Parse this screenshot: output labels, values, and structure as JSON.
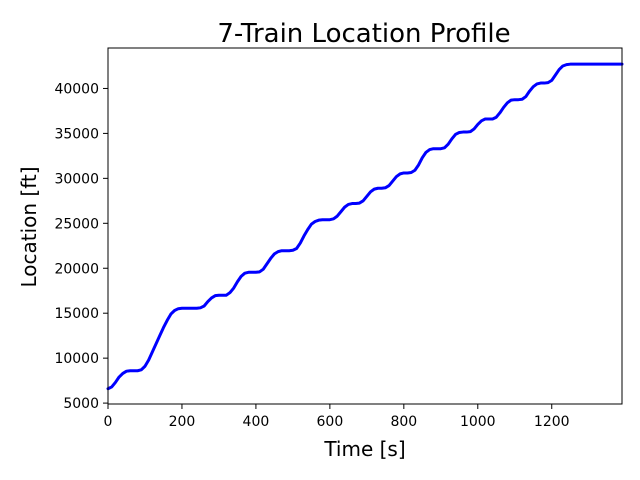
{
  "chart_data": {
    "type": "line",
    "title": "7-Train Location Profile",
    "xlabel": "Time [s]",
    "ylabel": "Location [ft]",
    "xlim": [
      0,
      1390
    ],
    "ylim": [
      4900,
      44500
    ],
    "xticks": [
      0,
      200,
      400,
      600,
      800,
      1000,
      1200
    ],
    "yticks": [
      5000,
      10000,
      15000,
      20000,
      25000,
      30000,
      35000,
      40000
    ],
    "grid": false,
    "line_color": "#0000ff",
    "series": [
      {
        "name": "",
        "x": [
          0,
          10,
          20,
          30,
          40,
          50,
          60,
          70,
          80,
          90,
          100,
          110,
          120,
          130,
          140,
          150,
          160,
          170,
          180,
          190,
          200,
          210,
          220,
          230,
          240,
          250,
          260,
          270,
          280,
          290,
          300,
          310,
          320,
          330,
          340,
          350,
          360,
          370,
          380,
          390,
          400,
          410,
          420,
          430,
          440,
          450,
          460,
          470,
          480,
          490,
          500,
          510,
          520,
          530,
          540,
          550,
          560,
          570,
          580,
          590,
          600,
          610,
          620,
          630,
          640,
          650,
          660,
          670,
          680,
          690,
          700,
          710,
          720,
          730,
          740,
          750,
          760,
          770,
          780,
          790,
          800,
          810,
          820,
          830,
          840,
          850,
          860,
          870,
          880,
          890,
          900,
          910,
          920,
          930,
          940,
          950,
          960,
          970,
          980,
          990,
          1000,
          1010,
          1020,
          1030,
          1040,
          1050,
          1060,
          1070,
          1080,
          1090,
          1100,
          1110,
          1120,
          1130,
          1140,
          1150,
          1160,
          1170,
          1180,
          1190,
          1200,
          1210,
          1220,
          1230,
          1240,
          1250,
          1260,
          1270,
          1280,
          1290,
          1300,
          1310,
          1320,
          1330,
          1340,
          1350,
          1360,
          1370,
          1380,
          1390
        ],
        "y": [
          6600,
          6800,
          7300,
          7900,
          8300,
          8550,
          8600,
          8600,
          8600,
          8700,
          9100,
          9800,
          10700,
          11600,
          12500,
          13400,
          14200,
          14900,
          15300,
          15500,
          15550,
          15550,
          15550,
          15550,
          15550,
          15600,
          15800,
          16300,
          16700,
          16950,
          17000,
          17000,
          17000,
          17300,
          17800,
          18500,
          19100,
          19450,
          19550,
          19550,
          19550,
          19600,
          19900,
          20500,
          21100,
          21600,
          21850,
          21950,
          21950,
          21950,
          22000,
          22200,
          22800,
          23600,
          24300,
          24900,
          25200,
          25350,
          25400,
          25400,
          25400,
          25500,
          25800,
          26300,
          26800,
          27100,
          27200,
          27200,
          27250,
          27500,
          28000,
          28500,
          28800,
          28900,
          28900,
          28950,
          29200,
          29700,
          30200,
          30500,
          30600,
          30600,
          30650,
          30900,
          31500,
          32300,
          32900,
          33200,
          33300,
          33300,
          33300,
          33400,
          33800,
          34400,
          34900,
          35100,
          35150,
          35150,
          35200,
          35500,
          36000,
          36400,
          36600,
          36600,
          36600,
          36800,
          37300,
          37900,
          38400,
          38700,
          38750,
          38750,
          38800,
          39100,
          39700,
          40200,
          40500,
          40600,
          40600,
          40650,
          40900,
          41500,
          42100,
          42500,
          42650,
          42700,
          42700,
          42700,
          42700,
          42700,
          42700,
          42700,
          42700,
          42700,
          42700,
          42700,
          42700,
          42700,
          42700,
          42700
        ]
      }
    ]
  }
}
